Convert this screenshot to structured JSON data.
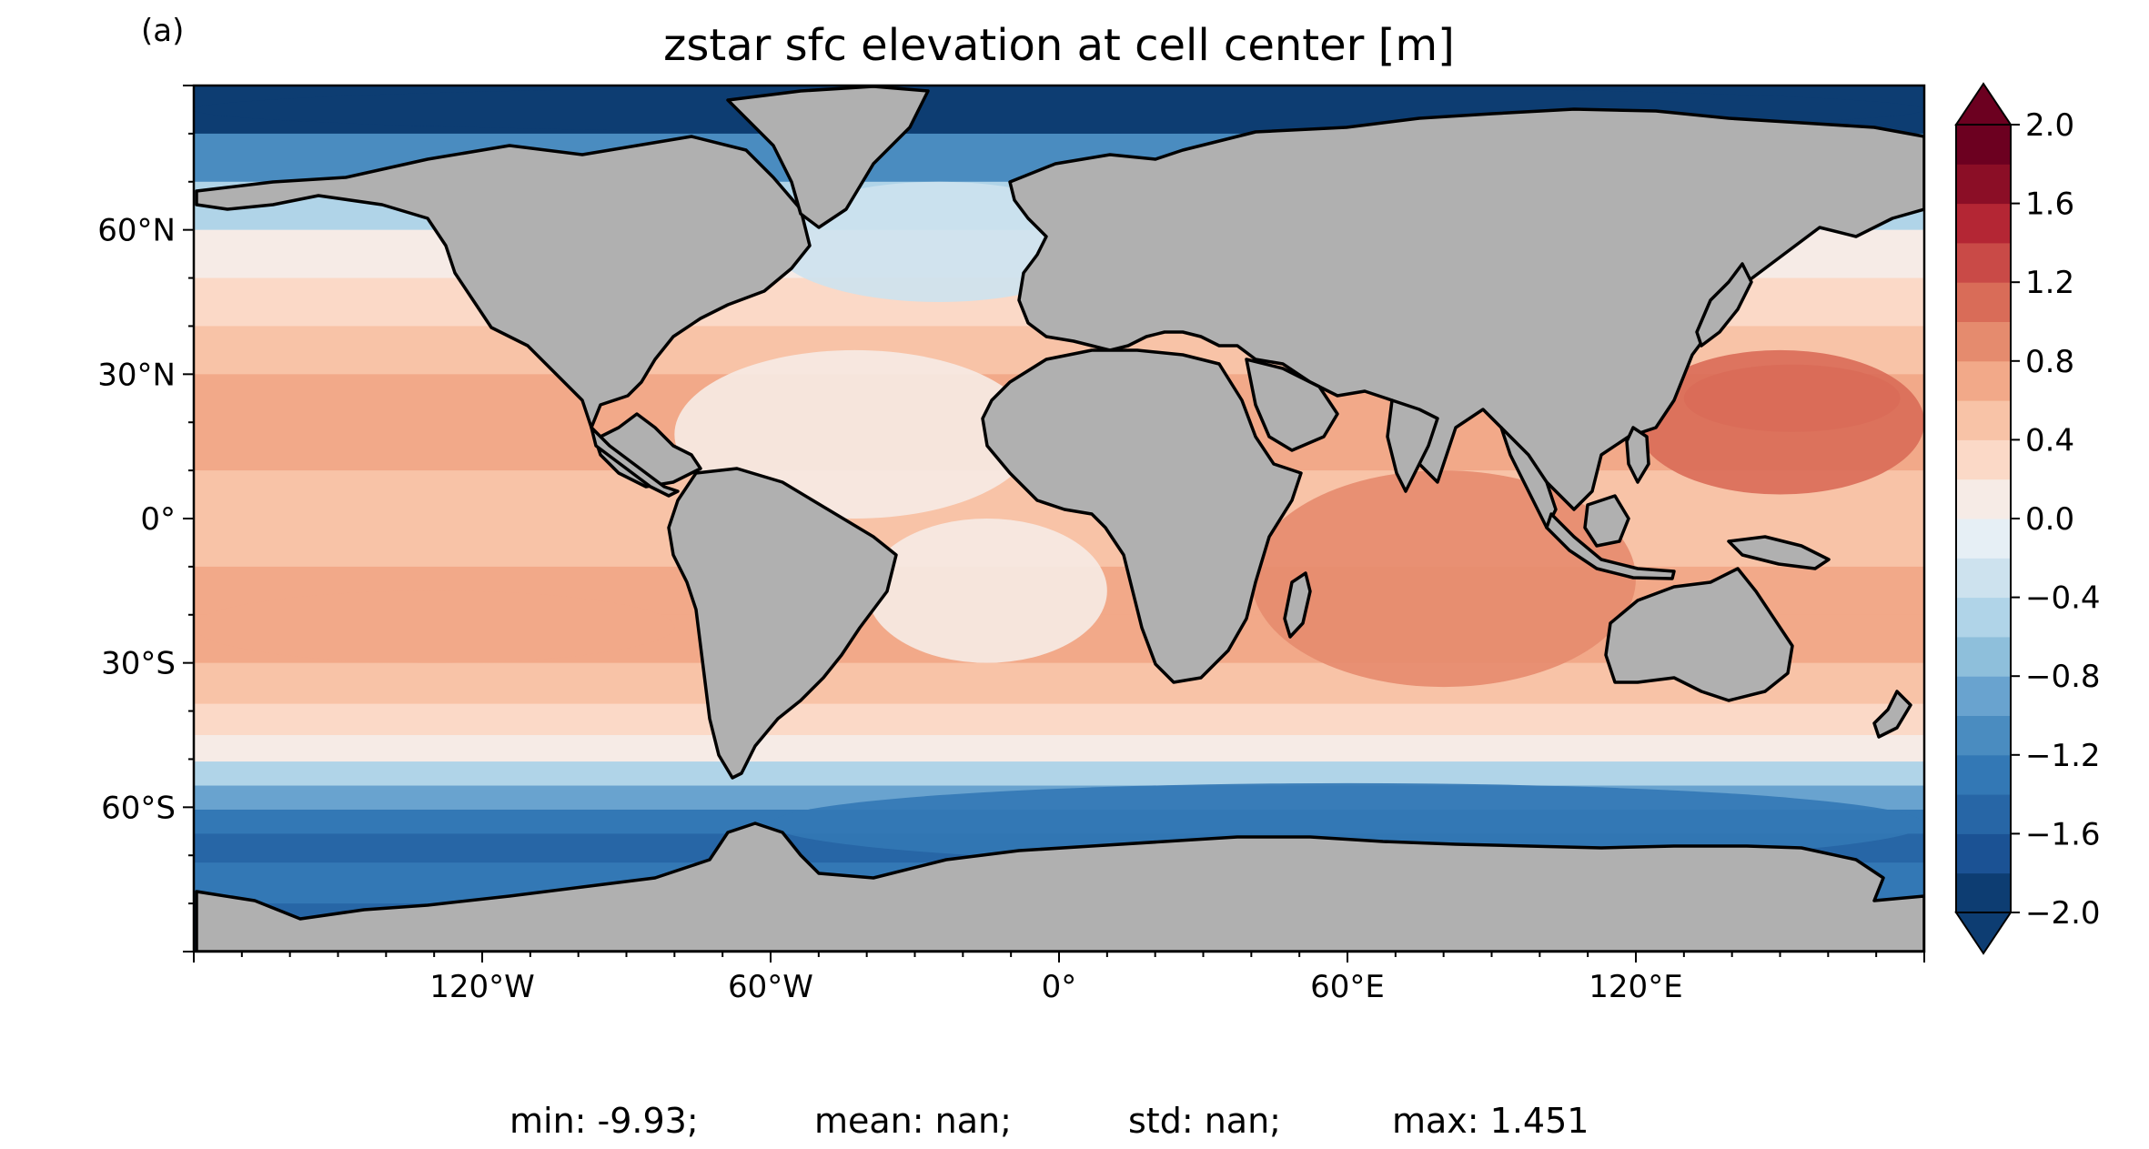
{
  "panel_label": "(a)",
  "stats": {
    "min": "min: -9.93;",
    "mean": "mean: nan;",
    "std": "std: nan;",
    "max": "max: 1.451"
  },
  "colors": {
    "land": "#b0b0b0",
    "frame": "#000000",
    "levels": [
      "#0d3d72",
      "#1b5294",
      "#2766a6",
      "#3378b5",
      "#4a8cc0",
      "#69a3cf",
      "#8ebfdb",
      "#b0d4e8",
      "#cde2ee",
      "#e6eff5",
      "#f6ebe6",
      "#fbd9c7",
      "#f8c3a7",
      "#f2a989",
      "#e58b6e",
      "#d96c58",
      "#c94a47",
      "#b42634",
      "#8b0e26",
      "#6c0020"
    ]
  },
  "chart_data": {
    "type": "heatmap",
    "title": "zstar sfc elevation at cell center [m]",
    "projection": "PlateCarree",
    "xlim": [
      -180,
      180
    ],
    "ylim": [
      -90,
      90
    ],
    "xticks": [
      {
        "lon": -120,
        "label": "120°W"
      },
      {
        "lon": -60,
        "label": "60°W"
      },
      {
        "lon": 0,
        "label": "0°"
      },
      {
        "lon": 60,
        "label": "60°E"
      },
      {
        "lon": 120,
        "label": "120°E"
      }
    ],
    "yticks": [
      {
        "lat": 60,
        "label": "60°N"
      },
      {
        "lat": 30,
        "label": "30°N"
      },
      {
        "lat": 0,
        "label": "0°"
      },
      {
        "lat": -30,
        "label": "30°S"
      },
      {
        "lat": -60,
        "label": "60°S"
      }
    ],
    "colorbar": {
      "vmin": -2.0,
      "vmax": 2.0,
      "levels": [
        -2.0,
        -1.8,
        -1.6,
        -1.4,
        -1.2,
        -1.0,
        -0.8,
        -0.6,
        -0.4,
        -0.2,
        0.0,
        0.2,
        0.4,
        0.6,
        0.8,
        1.0,
        1.2,
        1.4,
        1.6,
        1.8,
        2.0
      ],
      "extend": "both",
      "cmap": "RdBu_r",
      "ticks": [
        {
          "value": 2.0,
          "label": "2.0"
        },
        {
          "value": 1.6,
          "label": "1.6"
        },
        {
          "value": 1.2,
          "label": "1.2"
        },
        {
          "value": 0.8,
          "label": "0.8"
        },
        {
          "value": 0.4,
          "label": "0.4"
        },
        {
          "value": 0.0,
          "label": "0.0"
        },
        {
          "value": -0.4,
          "label": "−0.4"
        },
        {
          "value": -0.8,
          "label": "−0.8"
        },
        {
          "value": -1.2,
          "label": "−1.2"
        },
        {
          "value": -1.6,
          "label": "−1.6"
        },
        {
          "value": -2.0,
          "label": "−2.0"
        }
      ]
    },
    "zonal_profile": [
      {
        "lat": 85,
        "value": -2.0
      },
      {
        "lat": 75,
        "value": -1.1
      },
      {
        "lat": 65,
        "value": -0.5
      },
      {
        "lat": 55,
        "value": 0.1
      },
      {
        "lat": 45,
        "value": 0.3
      },
      {
        "lat": 35,
        "value": 0.55
      },
      {
        "lat": 25,
        "value": 0.7
      },
      {
        "lat": 15,
        "value": 0.65
      },
      {
        "lat": 5,
        "value": 0.5
      },
      {
        "lat": -5,
        "value": 0.5
      },
      {
        "lat": -15,
        "value": 0.6
      },
      {
        "lat": -25,
        "value": 0.65
      },
      {
        "lat": -35,
        "value": 0.55
      },
      {
        "lat": -42,
        "value": 0.35
      },
      {
        "lat": -48,
        "value": 0.0
      },
      {
        "lat": -53,
        "value": -0.5
      },
      {
        "lat": -58,
        "value": -1.0
      },
      {
        "lat": -63,
        "value": -1.3
      },
      {
        "lat": -68,
        "value": -1.5
      },
      {
        "lat": -75,
        "value": -1.4
      },
      {
        "lat": -85,
        "value": -1.5
      }
    ],
    "regional_features": [
      {
        "name": "west-pacific-warm-pool",
        "lon": [
          120,
          180
        ],
        "lat": [
          5,
          35
        ],
        "value": 1.0
      },
      {
        "name": "kuroshio-high",
        "lon": [
          130,
          175
        ],
        "lat": [
          18,
          32
        ],
        "value": 1.15
      },
      {
        "name": "indian-ocean",
        "lon": [
          40,
          120
        ],
        "lat": [
          -35,
          10
        ],
        "value": 0.85
      },
      {
        "name": "south-pacific",
        "lon": [
          -180,
          -80
        ],
        "lat": [
          -30,
          -15
        ],
        "value": 0.75
      },
      {
        "name": "north-atlantic",
        "lon": [
          -80,
          -5
        ],
        "lat": [
          0,
          35
        ],
        "value": 0.15
      },
      {
        "name": "north-atlantic-subpolar",
        "lon": [
          -60,
          10
        ],
        "lat": [
          45,
          70
        ],
        "value": -0.4
      },
      {
        "name": "south-atlantic",
        "lon": [
          -40,
          10
        ],
        "lat": [
          -30,
          0
        ],
        "value": 0.15
      },
      {
        "name": "antarctic-sector",
        "lon": [
          -60,
          180
        ],
        "lat": [
          -72,
          -55
        ],
        "value": -1.4
      },
      {
        "name": "arctic-ocean",
        "lon": [
          -180,
          180
        ],
        "lat": [
          80,
          90
        ],
        "value": -2.0
      }
    ]
  }
}
